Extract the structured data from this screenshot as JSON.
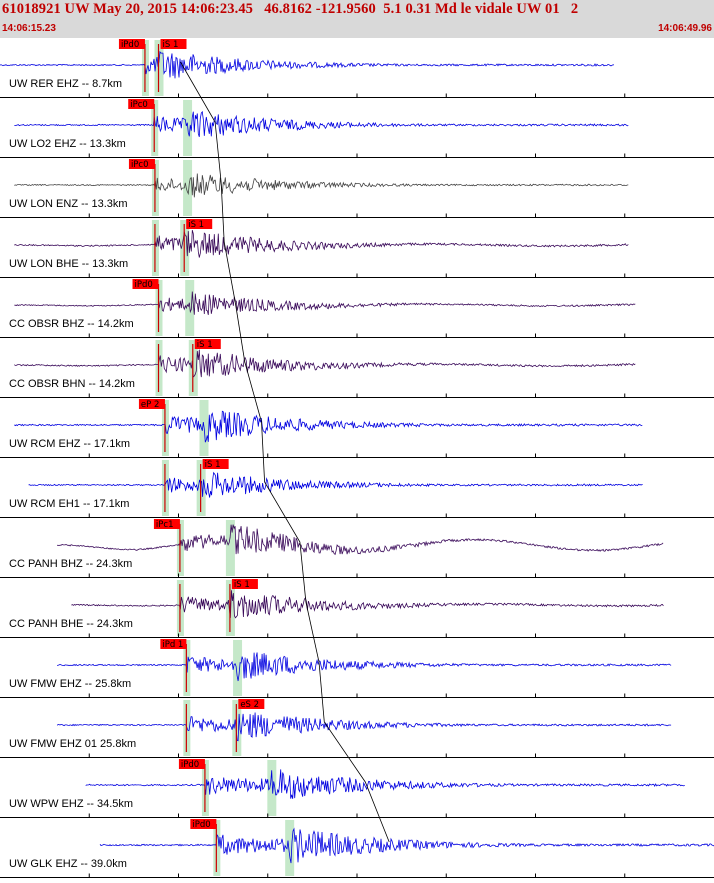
{
  "header": {
    "title": "61018921 UW May 20, 2015 14:06:23.45   46.8162 -121.9560  5.1 0.31 Md le vidale UW 01   2",
    "time_start": "14:06:15.23",
    "time_end": "14:06:49.96"
  },
  "colors": {
    "header_bg": "#d9d9d9",
    "header_text": "#c00000",
    "pick_bg": "#ff0000",
    "s_window": "#bfe5c3",
    "trace_blue": "#0000e0",
    "trace_gray": "#444444",
    "trace_purple": "#3a0a5a"
  },
  "channels": [
    {
      "label": "UW RER EHZ -- 8.7km",
      "color": "blue",
      "p": {
        "label": "iPd0",
        "t": 0.203
      },
      "s": {
        "label": "iS 1",
        "t": 0.222
      },
      "amp": 0.55,
      "start": 0.0,
      "end": 0.86,
      "long": 0.0
    },
    {
      "label": "UW LO2 EHZ -- 13.3km",
      "color": "blue",
      "p": {
        "label": "iPc0",
        "t": 0.216
      },
      "s": {
        "label": "",
        "t": 0.262
      },
      "amp": 0.55,
      "start": 0.02,
      "end": 0.88,
      "long": 0.0
    },
    {
      "label": "UW LON ENZ -- 13.3km",
      "color": "gray",
      "p": {
        "label": "iPc0",
        "t": 0.217
      },
      "s": {
        "label": "",
        "t": 0.262
      },
      "amp": 0.45,
      "start": 0.02,
      "end": 0.88,
      "long": 0.0
    },
    {
      "label": "UW LON BHE -- 13.3km",
      "color": "purple",
      "p": {
        "label": "",
        "t": 0.217
      },
      "s": {
        "label": "iS 1",
        "t": 0.258
      },
      "amp": 0.55,
      "start": 0.02,
      "end": 0.88,
      "long": 0.1
    },
    {
      "label": "CC OBSR BHZ -- 14.2km",
      "color": "purple",
      "p": {
        "label": "iPd0",
        "t": 0.222
      },
      "s": {
        "label": "",
        "t": 0.265
      },
      "amp": 0.45,
      "start": 0.02,
      "end": 0.89,
      "long": 0.1
    },
    {
      "label": "CC OBSR BHN -- 14.2km",
      "color": "purple",
      "p": {
        "label": "",
        "t": 0.222
      },
      "s": {
        "label": "iS 1",
        "t": 0.27
      },
      "amp": 0.55,
      "start": 0.02,
      "end": 0.89,
      "long": 0.1
    },
    {
      "label": "UW RCM EHZ -- 17.1km",
      "color": "blue",
      "p": {
        "label": "eP 2",
        "t": 0.231
      },
      "s": {
        "label": "",
        "t": 0.285
      },
      "amp": 0.6,
      "start": 0.02,
      "end": 0.9,
      "long": 0.0
    },
    {
      "label": "UW RCM EH1 -- 17.1km",
      "color": "blue",
      "p": {
        "label": "",
        "t": 0.231
      },
      "s": {
        "label": "iS 1",
        "t": 0.281
      },
      "amp": 0.5,
      "start": 0.04,
      "end": 0.9,
      "long": 0.0
    },
    {
      "label": "CC PANH BHZ -- 24.3km",
      "color": "purple",
      "p": {
        "label": "iPc1",
        "t": 0.252
      },
      "s": {
        "label": "",
        "t": 0.322
      },
      "amp": 0.55,
      "start": 0.08,
      "end": 0.93,
      "long": 0.6
    },
    {
      "label": "CC PANH BHE -- 24.3km",
      "color": "purple",
      "p": {
        "label": "",
        "t": 0.252
      },
      "s": {
        "label": "iS 1",
        "t": 0.322
      },
      "amp": 0.55,
      "start": 0.1,
      "end": 0.93,
      "long": 0.1
    },
    {
      "label": "UW FMW EHZ -- 25.8km",
      "color": "blue",
      "p": {
        "label": "iPd 1",
        "t": 0.261
      },
      "s": {
        "label": "",
        "t": 0.332
      },
      "amp": 0.55,
      "start": 0.08,
      "end": 0.94,
      "long": 0.0
    },
    {
      "label": "UW FMW EHZ 01 25.8km",
      "color": "blue",
      "p": {
        "label": "",
        "t": 0.261
      },
      "s": {
        "label": "eS 2",
        "t": 0.331
      },
      "amp": 0.55,
      "start": 0.08,
      "end": 0.94,
      "long": 0.0
    },
    {
      "label": "UW WPW EHZ -- 34.5km",
      "color": "blue",
      "p": {
        "label": "iPd0",
        "t": 0.287
      },
      "s": {
        "label": "",
        "t": 0.38
      },
      "amp": 0.6,
      "start": 0.12,
      "end": 0.96,
      "long": 0.0
    },
    {
      "label": "UW GLK EHZ -- 39.0km",
      "color": "blue",
      "p": {
        "label": "iPd0",
        "t": 0.303
      },
      "s": {
        "label": "",
        "t": 0.405
      },
      "amp": 0.65,
      "start": 0.14,
      "end": 1.0,
      "long": 0.0
    }
  ]
}
